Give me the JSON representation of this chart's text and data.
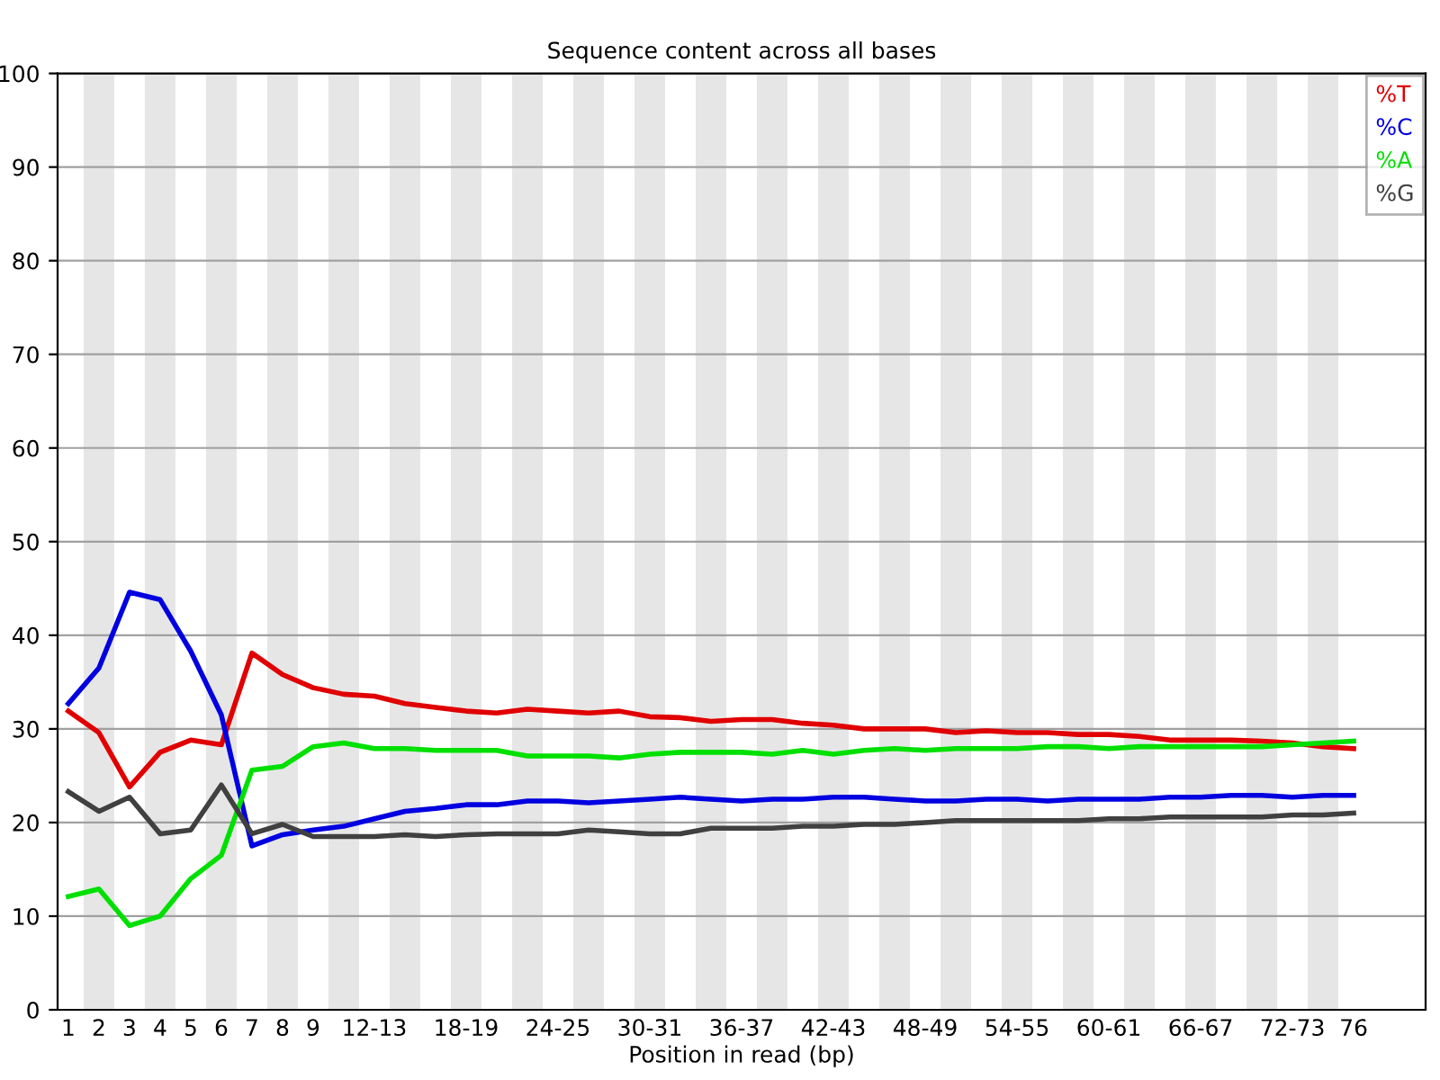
{
  "chart_data": {
    "type": "line",
    "title": "Sequence content across all bases",
    "xlabel": "Position in read (bp)",
    "categories": [
      "1",
      "2",
      "3",
      "4",
      "5",
      "6",
      "7",
      "8",
      "9",
      null,
      "12-13",
      null,
      null,
      "18-19",
      null,
      null,
      "24-25",
      null,
      null,
      "30-31",
      null,
      null,
      "36-37",
      null,
      null,
      "42-43",
      null,
      null,
      "48-49",
      null,
      null,
      "54-55",
      null,
      null,
      "60-61",
      null,
      null,
      "66-67",
      null,
      null,
      "72-73",
      null,
      "76"
    ],
    "series": [
      {
        "name": "%T",
        "color": "#e00000",
        "values": [
          31.9,
          29.6,
          23.8,
          27.5,
          28.8,
          28.3,
          38.1,
          35.8,
          34.4,
          33.7,
          33.5,
          32.7,
          32.3,
          31.9,
          31.7,
          32.1,
          31.9,
          31.7,
          31.9,
          31.3,
          31.2,
          30.8,
          31.0,
          31.0,
          30.6,
          30.4,
          30.0,
          30.0,
          30.0,
          29.6,
          29.8,
          29.6,
          29.6,
          29.4,
          29.4,
          29.2,
          28.8,
          28.8,
          28.8,
          28.7,
          28.5,
          28.1,
          27.9
        ]
      },
      {
        "name": "%C",
        "color": "#0000e0",
        "values": [
          32.7,
          36.5,
          44.6,
          43.8,
          38.3,
          31.5,
          17.5,
          18.7,
          19.2,
          19.6,
          20.4,
          21.2,
          21.5,
          21.9,
          21.9,
          22.3,
          22.3,
          22.1,
          22.3,
          22.5,
          22.7,
          22.5,
          22.3,
          22.5,
          22.5,
          22.7,
          22.7,
          22.5,
          22.3,
          22.3,
          22.5,
          22.5,
          22.3,
          22.5,
          22.5,
          22.5,
          22.7,
          22.7,
          22.9,
          22.9,
          22.7,
          22.9,
          22.9
        ]
      },
      {
        "name": "%A",
        "color": "#00e000",
        "values": [
          12.1,
          12.9,
          9.0,
          10.0,
          14.0,
          16.5,
          25.6,
          26.0,
          28.1,
          28.5,
          27.9,
          27.9,
          27.7,
          27.7,
          27.7,
          27.1,
          27.1,
          27.1,
          26.9,
          27.3,
          27.5,
          27.5,
          27.5,
          27.3,
          27.7,
          27.3,
          27.7,
          27.9,
          27.7,
          27.9,
          27.9,
          27.9,
          28.1,
          28.1,
          27.9,
          28.1,
          28.1,
          28.1,
          28.1,
          28.1,
          28.3,
          28.5,
          28.7
        ]
      },
      {
        "name": "%G",
        "color": "#404040",
        "values": [
          23.3,
          21.2,
          22.7,
          18.8,
          19.2,
          24.0,
          18.8,
          19.8,
          18.5,
          18.5,
          18.5,
          18.7,
          18.5,
          18.7,
          18.8,
          18.8,
          18.8,
          19.2,
          19.0,
          18.8,
          18.8,
          19.4,
          19.4,
          19.4,
          19.6,
          19.6,
          19.8,
          19.8,
          20.0,
          20.2,
          20.2,
          20.2,
          20.2,
          20.2,
          20.4,
          20.4,
          20.6,
          20.6,
          20.6,
          20.6,
          20.8,
          20.8,
          21.0
        ]
      }
    ],
    "ylim": [
      0,
      100
    ],
    "yticks": [
      0,
      10,
      20,
      30,
      40,
      50,
      60,
      70,
      80,
      90,
      100
    ],
    "grid": "y",
    "legend": "top right",
    "marker": "none",
    "line_style": "solid"
  }
}
